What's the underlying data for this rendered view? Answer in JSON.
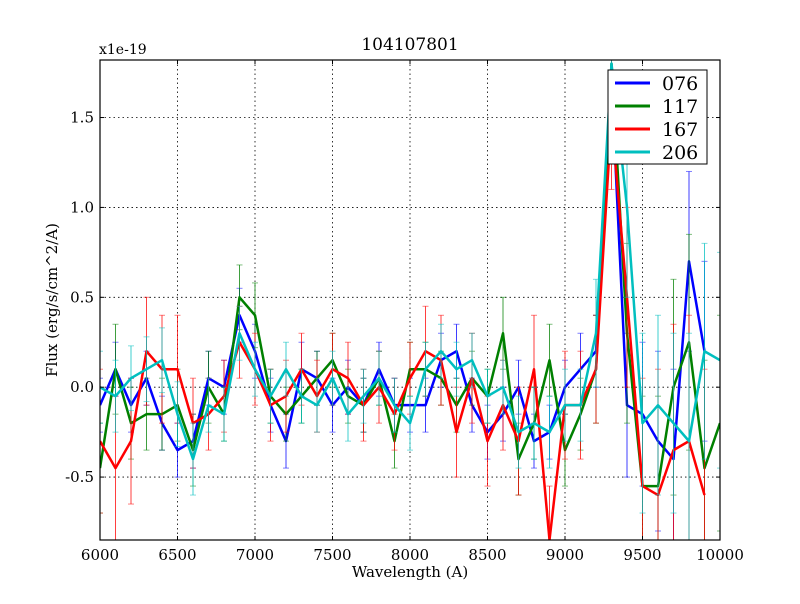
{
  "chart_data": {
    "type": "line",
    "title": "104107801",
    "xlabel": "Wavelength (A)",
    "ylabel": "Flux (erg/s/cm^2/A)",
    "y_multiplier": "x1e-19",
    "xlim": [
      6000,
      10000
    ],
    "ylim": [
      -0.85,
      1.82
    ],
    "xticks": [
      6000,
      6500,
      7000,
      7500,
      8000,
      8500,
      9000,
      9500,
      10000
    ],
    "xtick_labels": [
      "6000",
      "6500",
      "7000",
      "7500",
      "8000",
      "8500",
      "9000",
      "9500",
      "10000"
    ],
    "yticks": [
      -0.5,
      0.0,
      0.5,
      1.0,
      1.5
    ],
    "ytick_labels": [
      "-0.5",
      "0.0",
      "0.5",
      "1.0",
      "1.5"
    ],
    "grid": true,
    "legend_position": "top-right",
    "x": [
      6000,
      6100,
      6200,
      6300,
      6400,
      6500,
      6600,
      6700,
      6800,
      6900,
      7000,
      7100,
      7200,
      7300,
      7400,
      7500,
      7600,
      7700,
      7800,
      7900,
      8000,
      8100,
      8200,
      8300,
      8400,
      8500,
      8600,
      8700,
      8800,
      8900,
      9000,
      9100,
      9200,
      9300,
      9400,
      9500,
      9600,
      9700,
      9800,
      9900,
      10000
    ],
    "series": [
      {
        "name": "076",
        "color": "#0000ff",
        "values": [
          -0.1,
          0.1,
          -0.1,
          0.05,
          -0.2,
          -0.35,
          -0.3,
          0.05,
          0.0,
          0.4,
          0.2,
          -0.1,
          -0.3,
          0.1,
          0.05,
          -0.1,
          0.0,
          -0.1,
          0.1,
          -0.1,
          -0.1,
          -0.1,
          0.15,
          0.2,
          -0.1,
          -0.25,
          -0.15,
          0.0,
          -0.3,
          -0.25,
          0.0,
          0.1,
          0.2,
          1.7,
          -0.1,
          -0.15,
          -0.3,
          -0.4,
          0.7,
          0.2,
          null
        ],
        "errors": [
          0.15,
          0.15,
          0.15,
          0.15,
          0.15,
          0.15,
          0.15,
          0.15,
          0.15,
          0.15,
          0.15,
          0.15,
          0.15,
          0.15,
          0.15,
          0.15,
          0.15,
          0.15,
          0.15,
          0.15,
          0.15,
          0.15,
          0.15,
          0.15,
          0.15,
          0.15,
          0.15,
          0.15,
          0.15,
          0.15,
          0.15,
          0.2,
          0.2,
          0.3,
          0.4,
          0.4,
          0.5,
          0.5,
          0.5,
          0.5,
          0.5
        ]
      },
      {
        "name": "117",
        "color": "#008000",
        "values": [
          -0.45,
          0.1,
          -0.2,
          -0.15,
          -0.15,
          -0.1,
          -0.35,
          0.0,
          -0.15,
          0.5,
          0.4,
          -0.05,
          -0.15,
          -0.05,
          0.05,
          0.15,
          -0.05,
          -0.1,
          0.05,
          -0.3,
          0.1,
          0.1,
          0.05,
          -0.1,
          0.05,
          -0.05,
          0.3,
          -0.4,
          -0.2,
          0.15,
          -0.35,
          -0.15,
          0.1,
          1.8,
          0.3,
          -0.55,
          -0.55,
          0.0,
          0.25,
          -0.45,
          -0.2
        ],
        "errors": [
          0.25,
          0.25,
          0.2,
          0.2,
          0.2,
          0.2,
          0.2,
          0.2,
          0.15,
          0.18,
          0.18,
          0.15,
          0.15,
          0.15,
          0.15,
          0.15,
          0.15,
          0.15,
          0.15,
          0.15,
          0.15,
          0.15,
          0.15,
          0.15,
          0.15,
          0.15,
          0.2,
          0.2,
          0.2,
          0.2,
          0.2,
          0.2,
          0.3,
          0.4,
          0.5,
          0.5,
          0.5,
          0.6,
          0.6,
          0.6,
          0.6
        ]
      },
      {
        "name": "167",
        "color": "#ff0000",
        "values": [
          -0.3,
          -0.45,
          -0.3,
          0.2,
          0.1,
          0.1,
          -0.2,
          -0.15,
          -0.05,
          0.25,
          0.1,
          -0.1,
          -0.05,
          0.1,
          -0.05,
          0.1,
          0.05,
          -0.1,
          0.0,
          -0.15,
          0.05,
          0.2,
          0.15,
          -0.25,
          0.05,
          -0.3,
          -0.1,
          -0.3,
          0.1,
          -0.85,
          -0.1,
          -0.1,
          0.1,
          1.5,
          0.5,
          -0.55,
          -0.6,
          -0.35,
          -0.3,
          -0.6,
          null
        ],
        "errors": [
          0.4,
          0.4,
          0.35,
          0.3,
          0.3,
          0.3,
          0.25,
          0.2,
          0.2,
          0.2,
          0.2,
          0.2,
          0.2,
          0.2,
          0.2,
          0.2,
          0.2,
          0.2,
          0.2,
          0.2,
          0.2,
          0.25,
          0.25,
          0.25,
          0.25,
          0.25,
          0.25,
          0.3,
          0.3,
          0.3,
          0.3,
          0.3,
          0.3,
          0.4,
          0.5,
          0.6,
          0.7,
          0.7,
          0.7,
          0.7,
          0.7
        ]
      },
      {
        "name": "206",
        "color": "#00bfbf",
        "values": [
          0.0,
          -0.05,
          0.05,
          0.1,
          0.15,
          -0.15,
          -0.4,
          -0.1,
          -0.15,
          0.3,
          0.1,
          -0.05,
          0.1,
          -0.05,
          -0.1,
          0.05,
          -0.15,
          -0.05,
          0.05,
          -0.1,
          -0.2,
          0.1,
          0.2,
          0.1,
          0.15,
          -0.05,
          0.0,
          -0.25,
          -0.2,
          -0.25,
          -0.1,
          -0.1,
          0.3,
          1.8,
          1.0,
          -0.2,
          -0.1,
          -0.2,
          -0.3,
          0.2,
          0.15
        ],
        "errors": [
          0.2,
          0.2,
          0.18,
          0.18,
          0.18,
          0.18,
          0.2,
          0.15,
          0.15,
          0.15,
          0.15,
          0.15,
          0.15,
          0.15,
          0.15,
          0.15,
          0.15,
          0.15,
          0.15,
          0.15,
          0.15,
          0.15,
          0.15,
          0.15,
          0.15,
          0.15,
          0.15,
          0.2,
          0.2,
          0.2,
          0.2,
          0.2,
          0.3,
          0.4,
          0.5,
          0.5,
          0.5,
          0.5,
          0.6,
          0.6,
          0.6
        ]
      }
    ]
  }
}
